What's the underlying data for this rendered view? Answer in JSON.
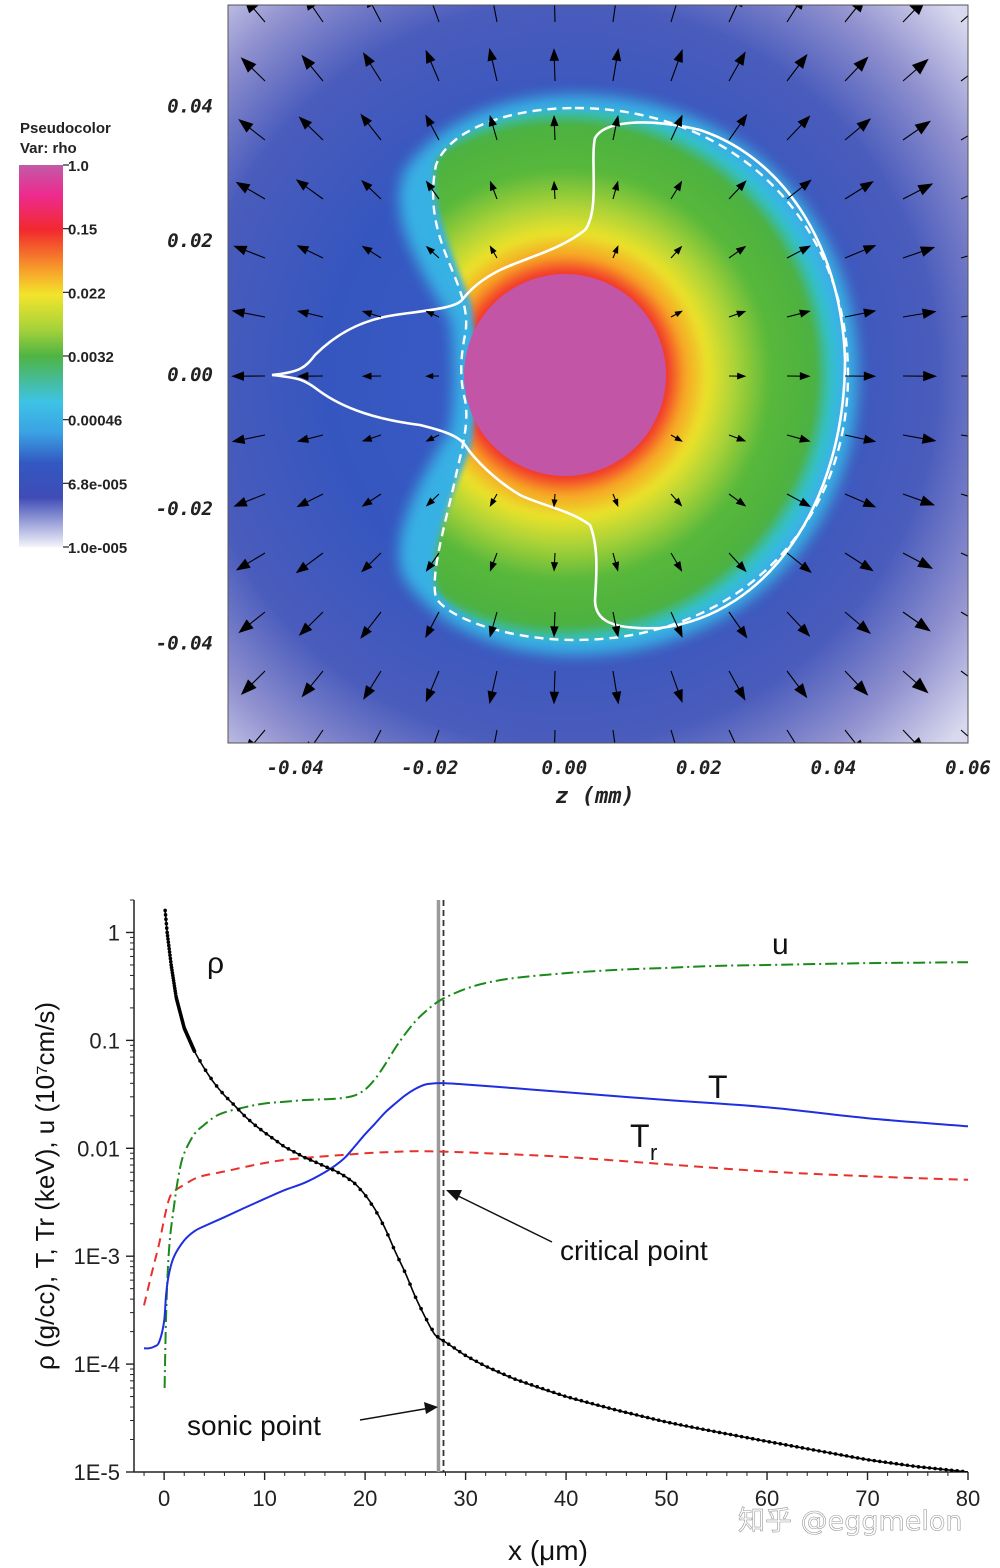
{
  "watermark": "知乎 @eggmelon",
  "colors": {
    "rho": "#000000",
    "u": "#1a8a1a",
    "T": "#1f2ee0",
    "Tr": "#e8312a",
    "sonic_line": "#9a9a9a",
    "critical_line": "#333333"
  },
  "chart_data": [
    {
      "type": "heatmap",
      "xlabel": "z (mm)",
      "ylabel": "",
      "xlim": [
        -0.05,
        0.06
      ],
      "ylim": [
        -0.055,
        0.055
      ],
      "x_ticks": [
        "-0.04",
        "-0.02",
        "0.00",
        "0.02",
        "0.04",
        "0.06"
      ],
      "y_ticks": [
        "0.04",
        "0.02",
        "0.00",
        "-0.02",
        "-0.04"
      ],
      "y_tick_values": [
        0.04,
        0.02,
        0.0,
        -0.02,
        -0.04
      ],
      "x_tick_values": [
        -0.04,
        -0.02,
        0.0,
        0.02,
        0.04,
        0.06
      ],
      "colorbar": {
        "title_line1": "Pseudocolor",
        "title_line2": "Var: rho",
        "labels": [
          "1.0",
          "0.15",
          "0.022",
          "0.0032",
          "0.00046",
          "6.8e-005",
          "1.0e-005"
        ],
        "scale": "log",
        "range": [
          1e-05,
          1.0
        ]
      },
      "core_radius_mm": 0.015,
      "core_center_mm": [
        0.0,
        0.0
      ],
      "arrows": "velocity field pointing radially outward"
    },
    {
      "type": "line",
      "xlabel": "x (μm)",
      "ylabel": "ρ (g/cc),  T, Tr (keV),  u (10⁷cm/s)",
      "xlim": [
        -3,
        80
      ],
      "ylim": [
        1e-05,
        2
      ],
      "yscale": "log",
      "x_ticks": [
        "0",
        "10",
        "20",
        "30",
        "40",
        "50",
        "60",
        "70",
        "80"
      ],
      "x_tick_values": [
        0,
        10,
        20,
        30,
        40,
        50,
        60,
        70,
        80
      ],
      "y_ticks": [
        "1",
        "0.1",
        "0.01",
        "1E-3",
        "1E-4",
        "1E-5"
      ],
      "y_tick_values": [
        1,
        0.1,
        0.01,
        0.001,
        0.0001,
        1e-05
      ],
      "series": [
        {
          "name": "ρ",
          "style": "dotted-solid",
          "x": [
            0.1,
            0.3,
            0.7,
            1.2,
            2,
            3,
            4,
            5,
            6,
            7,
            8,
            9,
            10,
            11,
            12,
            13,
            14,
            15,
            16,
            17,
            18,
            19,
            20,
            21,
            22,
            23,
            24,
            25,
            26,
            27,
            28,
            30,
            32,
            35,
            40,
            45,
            50,
            55,
            60,
            65,
            70,
            75,
            80
          ],
          "y": [
            1.6,
            1.0,
            0.5,
            0.25,
            0.13,
            0.08,
            0.055,
            0.04,
            0.031,
            0.025,
            0.02,
            0.0165,
            0.014,
            0.012,
            0.0103,
            0.0092,
            0.0082,
            0.0075,
            0.0068,
            0.0062,
            0.0055,
            0.0047,
            0.0037,
            0.0027,
            0.0018,
            0.0011,
            0.0007,
            0.00042,
            0.00027,
            0.000185,
            0.00016,
            0.00012,
            9.55e-05,
            7.2e-05,
            5e-05,
            3.75e-05,
            2.9e-05,
            2.35e-05,
            1.92e-05,
            1.58e-05,
            1.3e-05,
            1.12e-05,
            1e-05
          ]
        },
        {
          "name": "u",
          "style": "dash-dot",
          "x": [
            0.05,
            0.2,
            0.5,
            1,
            1.5,
            2,
            3,
            4,
            5,
            6,
            8,
            10,
            12,
            14,
            16,
            17,
            18,
            19,
            20,
            21,
            22,
            23,
            24,
            25,
            26,
            27,
            28,
            30,
            32,
            35,
            40,
            45,
            50,
            55,
            60,
            65,
            70,
            75,
            80
          ],
          "y": [
            6e-05,
            0.0003,
            0.0012,
            0.003,
            0.006,
            0.009,
            0.0135,
            0.0165,
            0.0195,
            0.0215,
            0.024,
            0.026,
            0.027,
            0.028,
            0.0285,
            0.0288,
            0.0295,
            0.031,
            0.035,
            0.044,
            0.06,
            0.085,
            0.115,
            0.15,
            0.185,
            0.22,
            0.25,
            0.3,
            0.34,
            0.38,
            0.42,
            0.45,
            0.47,
            0.49,
            0.5,
            0.51,
            0.52,
            0.525,
            0.53
          ]
        },
        {
          "name": "T",
          "style": "solid",
          "x": [
            -2,
            -1.5,
            -1,
            -0.5,
            0,
            0.2,
            0.5,
            1,
            2,
            3,
            4,
            6,
            8,
            10,
            12,
            14,
            16,
            17,
            18,
            19,
            20,
            21,
            22,
            23,
            24,
            25,
            26,
            27,
            28,
            30,
            35,
            40,
            50,
            60,
            70,
            80
          ],
          "y": [
            0.00014,
            0.00014,
            0.000145,
            0.00016,
            0.00025,
            0.00045,
            0.0007,
            0.001,
            0.0014,
            0.0017,
            0.0019,
            0.0023,
            0.0028,
            0.0034,
            0.0041,
            0.0048,
            0.006,
            0.0069,
            0.0082,
            0.0105,
            0.0135,
            0.017,
            0.0215,
            0.026,
            0.031,
            0.0355,
            0.039,
            0.04,
            0.04,
            0.039,
            0.036,
            0.033,
            0.028,
            0.024,
            0.019,
            0.016
          ]
        },
        {
          "name": "Tr",
          "style": "dashed",
          "x": [
            -2,
            -1.5,
            -1,
            -0.5,
            0,
            0.5,
            1,
            2,
            3,
            4,
            6,
            8,
            10,
            12,
            15,
            18,
            20,
            22,
            25,
            28,
            32,
            40,
            50,
            60,
            70,
            80
          ],
          "y": [
            0.00035,
            0.00055,
            0.00085,
            0.0013,
            0.0022,
            0.0034,
            0.004,
            0.0046,
            0.0052,
            0.0056,
            0.0061,
            0.0067,
            0.0073,
            0.0078,
            0.0083,
            0.0087,
            0.009,
            0.0092,
            0.0094,
            0.0093,
            0.009,
            0.0083,
            0.0071,
            0.0061,
            0.0055,
            0.0051
          ]
        }
      ],
      "series_labels": {
        "rho": "ρ",
        "u": "u",
        "T": "T",
        "Tr_main": "T",
        "Tr_sub": "r"
      },
      "vlines": [
        {
          "name": "sonic point",
          "x": 27.3,
          "style": "solid-gray"
        },
        {
          "name": "critical point",
          "x": 27.8,
          "style": "dashed"
        }
      ],
      "annotations": {
        "critical": "critical point",
        "sonic": "sonic point"
      }
    }
  ]
}
